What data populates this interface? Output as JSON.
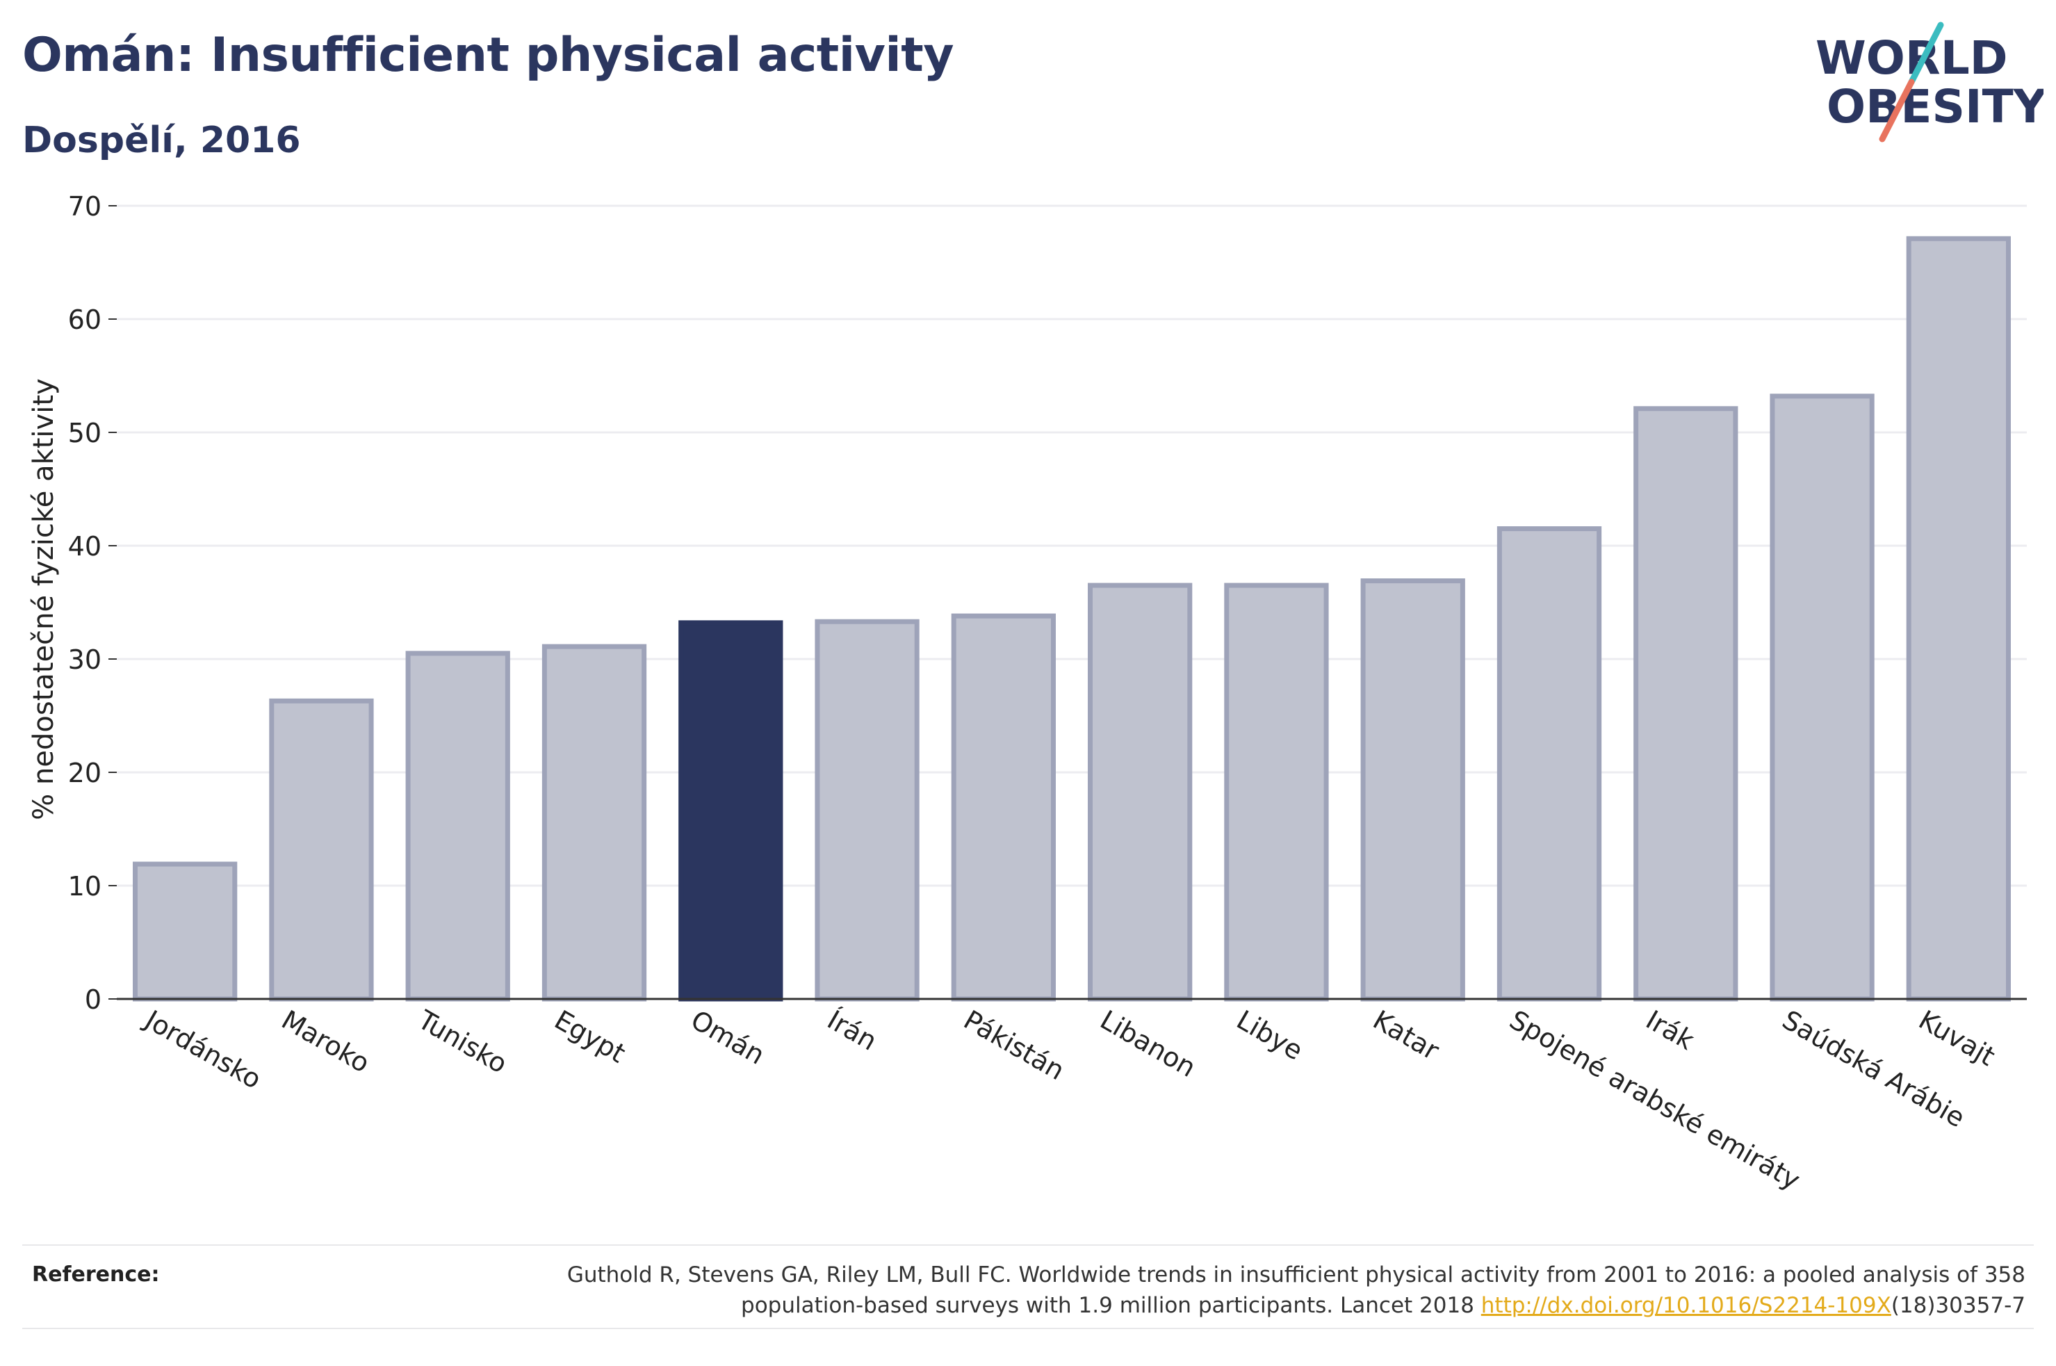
{
  "header": {
    "title": "Omán: Insufficient physical activity",
    "subtitle": "Dospělí, 2016"
  },
  "logo": {
    "line1": "WORLD",
    "line2": "OBESITY",
    "icon": "world-obesity-logo"
  },
  "colors": {
    "highlight": "#2b365f",
    "bar": "#bfc2cf",
    "bar_stroke": "#9ea3b9",
    "text": "#2b365f",
    "grid": "#ececf0",
    "logo_teal": "#3bbcc0",
    "logo_coral": "#e8735e"
  },
  "chart_data": {
    "type": "bar",
    "categories": [
      "Jordánsko",
      "Maroko",
      "Tunisko",
      "Egypt",
      "Omán",
      "Írán",
      "Pákistán",
      "Libanon",
      "Libye",
      "Katar",
      "Spojené arabské emiráty",
      "Irák",
      "Saúdská Arábie",
      "Kuvajt"
    ],
    "values": [
      11.9,
      26.3,
      30.5,
      31.1,
      33.2,
      33.3,
      33.8,
      36.5,
      36.5,
      36.9,
      41.5,
      52.1,
      53.2,
      67.1
    ],
    "highlight": "Omán",
    "ylabel": "% nedostatečné fyzické aktivity",
    "xlabel": "",
    "ylim": [
      0,
      70
    ],
    "yticks": [
      0,
      10,
      20,
      30,
      40,
      50,
      60,
      70
    ],
    "grid": true
  },
  "reference": {
    "label": "Reference:",
    "text_line1": "Guthold R, Stevens GA, Riley LM, Bull FC. Worldwide trends in insufficient physical activity from 2001 to 2016: a pooled analysis of 358",
    "text_line2_pre": "population-based surveys with 1.9 million participants. Lancet 2018 ",
    "doi_link": "http://dx.doi.org/10.1016/S2214-109X",
    "text_line2_post": "(18)30357-7"
  }
}
